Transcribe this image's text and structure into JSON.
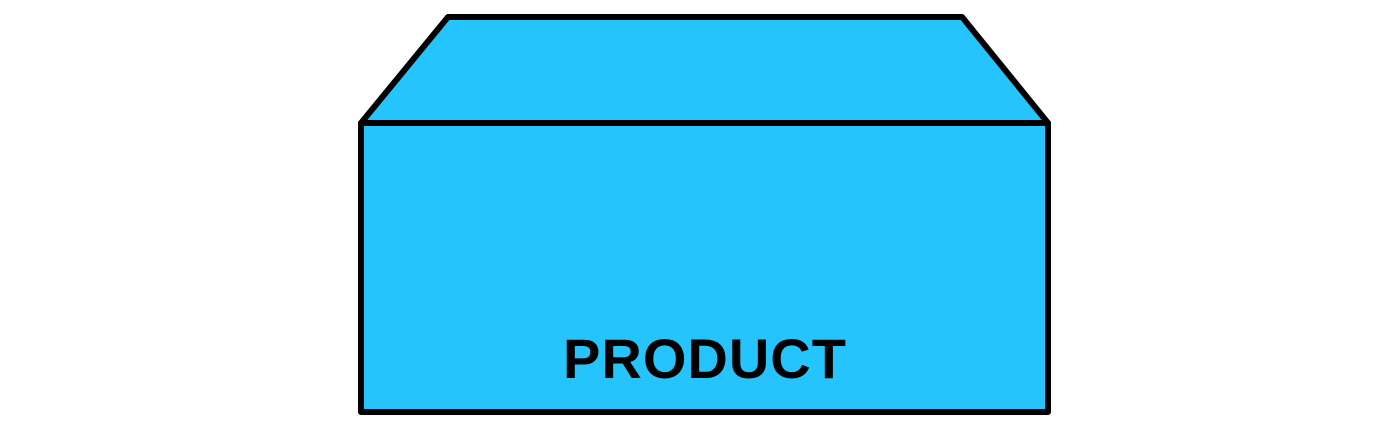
{
  "diagram": {
    "label": "PRODUCT",
    "colors": {
      "fill": "#26C4FC",
      "stroke": "#000000",
      "text": "#000000",
      "background": "#FFFFFF"
    }
  }
}
